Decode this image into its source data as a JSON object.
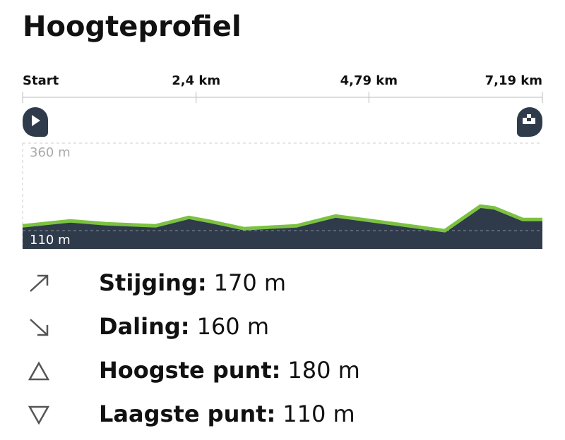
{
  "header": {
    "title": "Hoogteprofiel"
  },
  "chart_data": {
    "type": "area",
    "x": [
      0,
      0.66,
      1.15,
      1.84,
      2.3,
      2.61,
      3.06,
      3.79,
      4.33,
      4.77,
      5.35,
      5.84,
      6.33,
      6.53,
      6.92,
      7.19
    ],
    "values": [
      124,
      138,
      130,
      124,
      148,
      136,
      116,
      124,
      152,
      140,
      124,
      110,
      180,
      175,
      142,
      142
    ],
    "xlim": [
      0,
      7.19
    ],
    "xticks": [
      {
        "value": 0,
        "label": "Start"
      },
      {
        "value": 2.4,
        "label": "2,4 km"
      },
      {
        "value": 4.79,
        "label": "4,79 km"
      },
      {
        "value": 7.19,
        "label": "7,19 km"
      }
    ],
    "ylim": [
      58,
      360
    ],
    "yticks": [
      {
        "value": 360,
        "label": "360 m"
      },
      {
        "value": 110,
        "label": "110 m"
      }
    ],
    "color": "#2f3a4a",
    "line_color": "#7cc242"
  },
  "stats": [
    {
      "label": "Stijging:",
      "value": "170 m"
    },
    {
      "label": "Daling:",
      "value": "160 m"
    },
    {
      "label": "Hoogste punt:",
      "value": "180 m"
    },
    {
      "label": "Laagste punt:",
      "value": "110 m"
    }
  ]
}
